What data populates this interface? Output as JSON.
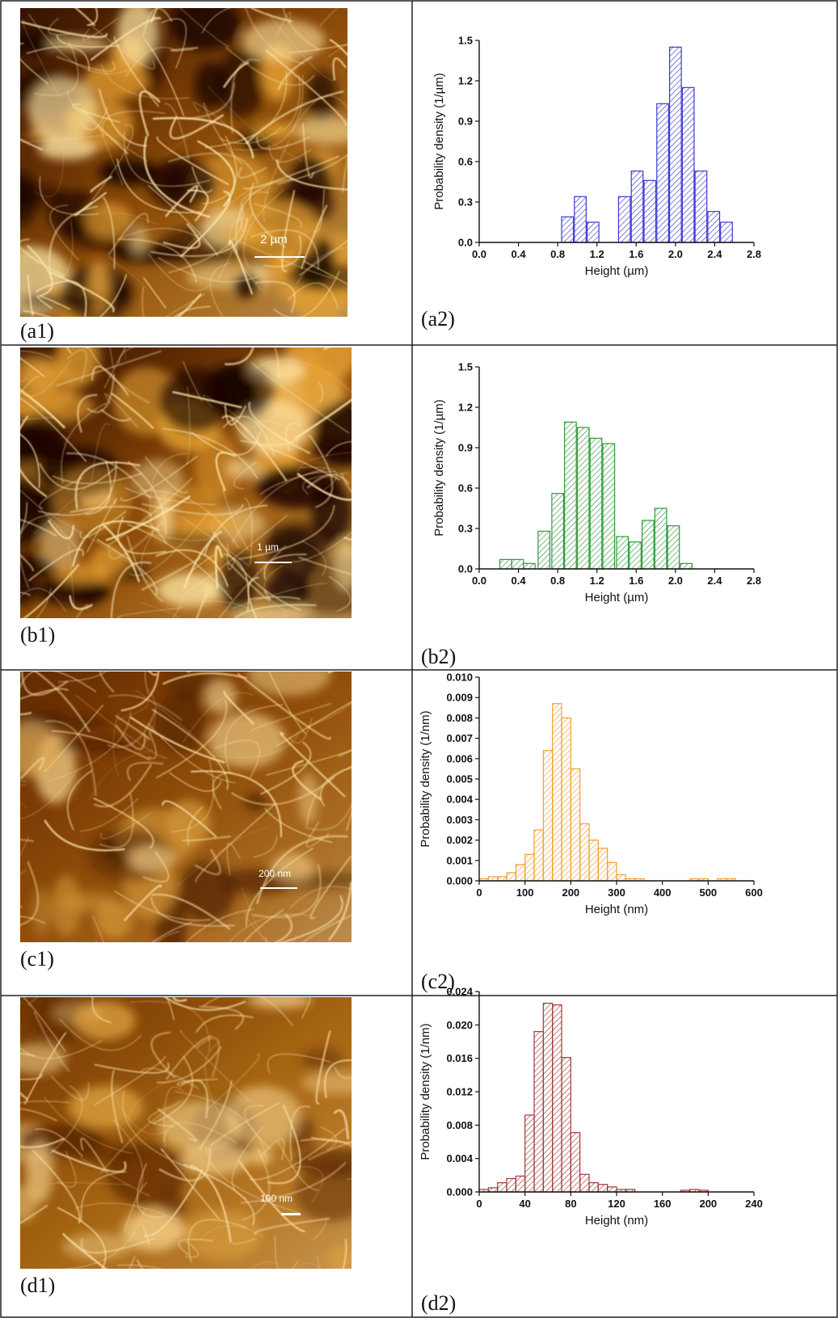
{
  "panels": [
    {
      "id": "a",
      "image_label": "(a1)",
      "chart_label": "(a2)",
      "scalebar": "2 µm",
      "palette": "bright",
      "orientation": "down"
    },
    {
      "id": "b",
      "image_label": "(b1)",
      "chart_label": "(b2)",
      "scalebar": "1 µm",
      "palette": "bright",
      "orientation": "down"
    },
    {
      "id": "c",
      "image_label": "(c1)",
      "chart_label": "(c2)",
      "scalebar": "200 nm",
      "palette": "mid",
      "orientation": "down"
    },
    {
      "id": "d",
      "image_label": "(d1)",
      "chart_label": "(d2)",
      "scalebar": "100 nm",
      "palette": "soft",
      "orientation": "up"
    }
  ],
  "colors": {
    "a": "#3a3acf",
    "b": "#2e9a3a",
    "c": "#f0a030",
    "d": "#a03a3a"
  },
  "chart_data": [
    {
      "type": "bar",
      "panel": "a2",
      "xlabel": "Height (µm)",
      "ylabel": "Probability density (1/µm)",
      "xlim": [
        0.0,
        2.8
      ],
      "ylim": [
        0.0,
        1.5
      ],
      "xticks": [
        "0.0",
        "0.4",
        "0.8",
        "1.2",
        "1.6",
        "2.0",
        "2.4",
        "2.8"
      ],
      "yticks": [
        "0.0",
        "0.3",
        "0.6",
        "0.9",
        "1.2",
        "1.5"
      ],
      "bin_width": 0.12,
      "bins": [
        {
          "x": 0.9,
          "y": 0.19
        },
        {
          "x": 1.03,
          "y": 0.34
        },
        {
          "x": 1.16,
          "y": 0.15
        },
        {
          "x": 1.48,
          "y": 0.34
        },
        {
          "x": 1.61,
          "y": 0.53
        },
        {
          "x": 1.74,
          "y": 0.46
        },
        {
          "x": 1.87,
          "y": 1.03
        },
        {
          "x": 2.0,
          "y": 1.45
        },
        {
          "x": 2.13,
          "y": 1.15
        },
        {
          "x": 2.26,
          "y": 0.53
        },
        {
          "x": 2.39,
          "y": 0.23
        },
        {
          "x": 2.52,
          "y": 0.15
        }
      ]
    },
    {
      "type": "bar",
      "panel": "b2",
      "xlabel": "Height (µm)",
      "ylabel": "Probability density (1/µm)",
      "xlim": [
        0.0,
        2.8
      ],
      "ylim": [
        0.0,
        1.5
      ],
      "xticks": [
        "0.0",
        "0.4",
        "0.8",
        "1.2",
        "1.6",
        "2.0",
        "2.4",
        "2.8"
      ],
      "yticks": [
        "0.0",
        "0.3",
        "0.6",
        "0.9",
        "1.2",
        "1.5"
      ],
      "bin_width": 0.12,
      "bins": [
        {
          "x": 0.27,
          "y": 0.07
        },
        {
          "x": 0.39,
          "y": 0.07
        },
        {
          "x": 0.51,
          "y": 0.04
        },
        {
          "x": 0.66,
          "y": 0.28
        },
        {
          "x": 0.8,
          "y": 0.56
        },
        {
          "x": 0.93,
          "y": 1.09
        },
        {
          "x": 1.06,
          "y": 1.05
        },
        {
          "x": 1.19,
          "y": 0.97
        },
        {
          "x": 1.32,
          "y": 0.93
        },
        {
          "x": 1.46,
          "y": 0.24
        },
        {
          "x": 1.59,
          "y": 0.2
        },
        {
          "x": 1.72,
          "y": 0.36
        },
        {
          "x": 1.85,
          "y": 0.45
        },
        {
          "x": 1.98,
          "y": 0.32
        },
        {
          "x": 2.11,
          "y": 0.04
        }
      ]
    },
    {
      "type": "bar",
      "panel": "c2",
      "xlabel": "Height (nm)",
      "ylabel": "Probability density (1/nm)",
      "xlim": [
        0,
        600
      ],
      "ylim": [
        0.0,
        0.01
      ],
      "xticks": [
        "0",
        "100",
        "200",
        "300",
        "400",
        "500",
        "600"
      ],
      "yticks": [
        "0.000",
        "0.001",
        "0.002",
        "0.003",
        "0.004",
        "0.005",
        "0.006",
        "0.007",
        "0.008",
        "0.009",
        "0.010"
      ],
      "bin_width": 20,
      "bins": [
        {
          "x": 10,
          "y": 0.0001
        },
        {
          "x": 30,
          "y": 0.0002
        },
        {
          "x": 50,
          "y": 0.0002
        },
        {
          "x": 70,
          "y": 0.0004
        },
        {
          "x": 90,
          "y": 0.0008
        },
        {
          "x": 110,
          "y": 0.0013
        },
        {
          "x": 130,
          "y": 0.0025
        },
        {
          "x": 150,
          "y": 0.0064
        },
        {
          "x": 170,
          "y": 0.0087
        },
        {
          "x": 190,
          "y": 0.008
        },
        {
          "x": 210,
          "y": 0.0055
        },
        {
          "x": 230,
          "y": 0.0028
        },
        {
          "x": 250,
          "y": 0.002
        },
        {
          "x": 270,
          "y": 0.0016
        },
        {
          "x": 290,
          "y": 0.0009
        },
        {
          "x": 310,
          "y": 0.0003
        },
        {
          "x": 330,
          "y": 0.0001
        },
        {
          "x": 350,
          "y": 0.0001
        },
        {
          "x": 470,
          "y": 0.0001
        },
        {
          "x": 490,
          "y": 0.0001
        },
        {
          "x": 530,
          "y": 0.0001
        },
        {
          "x": 550,
          "y": 0.0001
        }
      ]
    },
    {
      "type": "bar",
      "panel": "d2",
      "xlabel": "Height (nm)",
      "ylabel": "Probability density (1/nm)",
      "xlim": [
        0,
        240
      ],
      "ylim": [
        0.0,
        0.024
      ],
      "xticks": [
        "0",
        "40",
        "80",
        "120",
        "160",
        "200",
        "240"
      ],
      "yticks": [
        "0.000",
        "0.004",
        "0.008",
        "0.012",
        "0.016",
        "0.020",
        "0.024"
      ],
      "bin_width": 8,
      "bins": [
        {
          "x": 4,
          "y": 0.0003
        },
        {
          "x": 12,
          "y": 0.0005
        },
        {
          "x": 20,
          "y": 0.0011
        },
        {
          "x": 28,
          "y": 0.0016
        },
        {
          "x": 36,
          "y": 0.0019
        },
        {
          "x": 44,
          "y": 0.0092
        },
        {
          "x": 52,
          "y": 0.0192
        },
        {
          "x": 60,
          "y": 0.0226
        },
        {
          "x": 68,
          "y": 0.0224
        },
        {
          "x": 76,
          "y": 0.0161
        },
        {
          "x": 84,
          "y": 0.0071
        },
        {
          "x": 92,
          "y": 0.0021
        },
        {
          "x": 100,
          "y": 0.0011
        },
        {
          "x": 108,
          "y": 0.0009
        },
        {
          "x": 116,
          "y": 0.0006
        },
        {
          "x": 124,
          "y": 0.0003
        },
        {
          "x": 132,
          "y": 0.0003
        },
        {
          "x": 180,
          "y": 0.0002
        },
        {
          "x": 188,
          "y": 0.0003
        },
        {
          "x": 196,
          "y": 0.0002
        }
      ]
    }
  ]
}
